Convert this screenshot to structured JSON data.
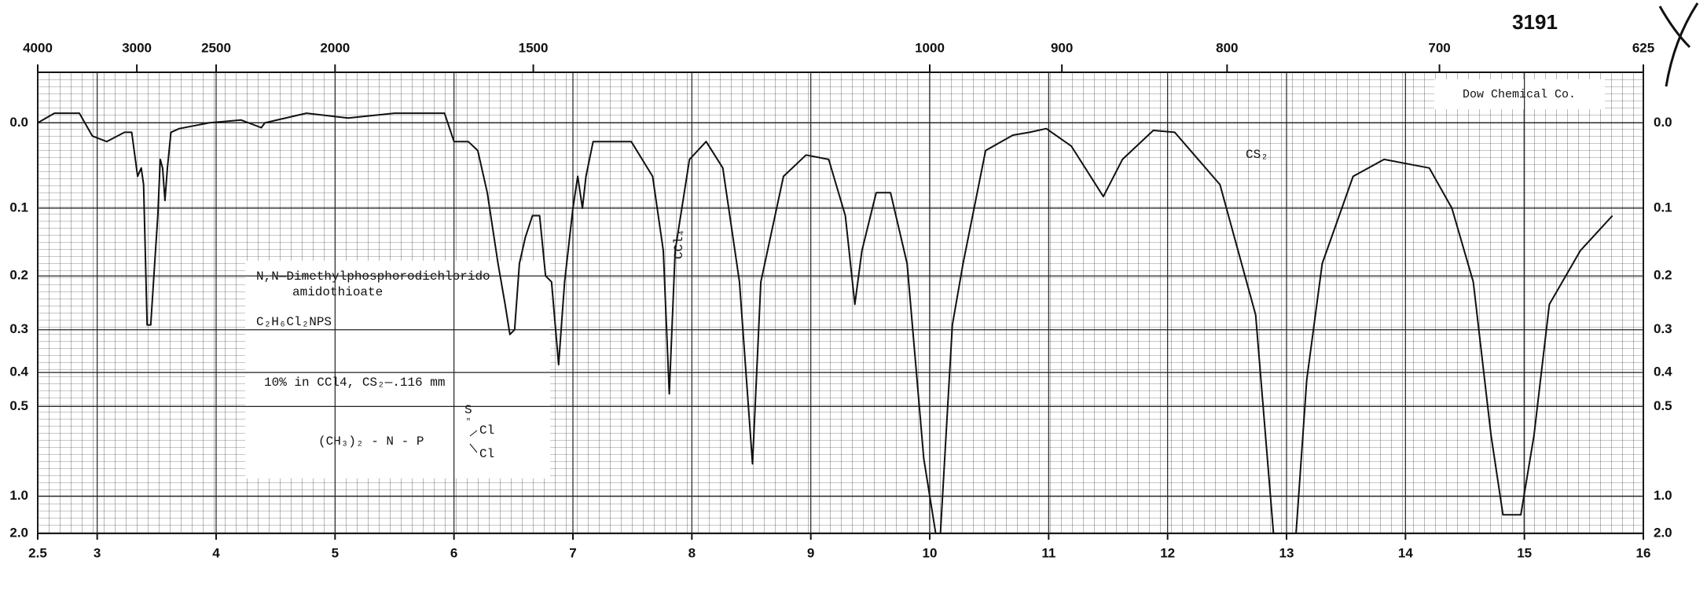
{
  "chart_data": {
    "type": "line",
    "page_number": "3191",
    "credit": "Dow Chemical Co.",
    "compound_name": [
      "N,N—Dimethylphosphorodichlorido",
      "amidothioate"
    ],
    "formula": "C₂H₆Cl₂NPS",
    "conditions": "10% in CCl4,  CS₂—.116 mm",
    "structure": {
      "main": "(CH₃)₂ - N - P",
      "top": "S",
      "upper": "Cl",
      "lower": "Cl"
    },
    "annotations": [
      "CCl₄",
      "CS₂"
    ],
    "color": "#111111",
    "yscale": "absorbance",
    "grid": true,
    "xlim": [
      2.5,
      16
    ],
    "xticks": [
      2.5,
      3,
      4,
      5,
      6,
      7,
      8,
      9,
      10,
      11,
      12,
      13,
      14,
      15,
      16
    ],
    "x2scale": "reciprocal",
    "x2ticks": [
      4000,
      3000,
      2500,
      2000,
      1500,
      1000,
      900,
      800,
      700,
      625
    ],
    "ylim": [
      -0.05,
      2.0
    ],
    "yticks": [
      {
        "value": 0,
        "label": "0.0"
      },
      0.1,
      0.2,
      0.3,
      0.4,
      0.5,
      {
        "value": 1,
        "label": "1.0"
      },
      {
        "value": 2,
        "label": "2.0"
      }
    ],
    "x": [
      2.5,
      2.64,
      2.85,
      2.96,
      3.08,
      3.23,
      3.29,
      3.34,
      3.37,
      3.39,
      3.42,
      3.45,
      3.48,
      3.51,
      3.53,
      3.55,
      3.57,
      3.59,
      3.62,
      3.69,
      3.94,
      4.21,
      4.38,
      4.41,
      4.76,
      5.11,
      5.5,
      5.92,
      6.0,
      6.12,
      6.2,
      6.28,
      6.37,
      6.43,
      6.47,
      6.51,
      6.55,
      6.6,
      6.66,
      6.72,
      6.77,
      6.82,
      6.88,
      6.93,
      7.0,
      7.04,
      7.08,
      7.11,
      7.17,
      7.31,
      7.49,
      7.67,
      7.76,
      7.81,
      7.86,
      7.98,
      8.12,
      8.26,
      8.4,
      8.51,
      8.58,
      8.77,
      8.96,
      9.15,
      9.29,
      9.37,
      9.43,
      9.55,
      9.67,
      9.81,
      9.95,
      10.05,
      10.09,
      10.19,
      10.28,
      10.47,
      10.7,
      10.84,
      10.98,
      11.19,
      11.46,
      11.62,
      11.88,
      12.06,
      12.44,
      12.74,
      12.89,
      13.08,
      13.17,
      13.3,
      13.56,
      13.82,
      14.2,
      14.39,
      14.57,
      14.72,
      14.82,
      14.97,
      15.08,
      15.21,
      15.47,
      15.74
    ],
    "values": [
      0.0,
      -0.01,
      -0.01,
      0.014,
      0.02,
      0.01,
      0.01,
      0.06,
      0.05,
      0.07,
      0.29,
      0.29,
      0.19,
      0.11,
      0.04,
      0.05,
      0.09,
      0.05,
      0.01,
      0.006,
      0.0,
      -0.003,
      0.005,
      0.0,
      -0.01,
      -0.005,
      -0.01,
      -0.01,
      0.02,
      0.02,
      0.03,
      0.08,
      0.18,
      0.25,
      0.31,
      0.3,
      0.18,
      0.14,
      0.11,
      0.11,
      0.2,
      0.21,
      0.38,
      0.21,
      0.1,
      0.06,
      0.1,
      0.06,
      0.02,
      0.02,
      0.02,
      0.06,
      0.16,
      0.46,
      0.16,
      0.04,
      0.02,
      0.05,
      0.21,
      0.75,
      0.21,
      0.06,
      0.035,
      0.04,
      0.11,
      0.25,
      0.16,
      0.08,
      0.08,
      0.18,
      0.72,
      2.0,
      2.0,
      0.29,
      0.18,
      0.03,
      0.013,
      0.01,
      0.006,
      0.025,
      0.085,
      0.04,
      0.008,
      0.01,
      0.07,
      0.27,
      2.0,
      2.0,
      0.42,
      0.18,
      0.06,
      0.04,
      0.05,
      0.1,
      0.21,
      0.61,
      1.26,
      1.26,
      0.61,
      0.25,
      0.16,
      0.11
    ]
  }
}
